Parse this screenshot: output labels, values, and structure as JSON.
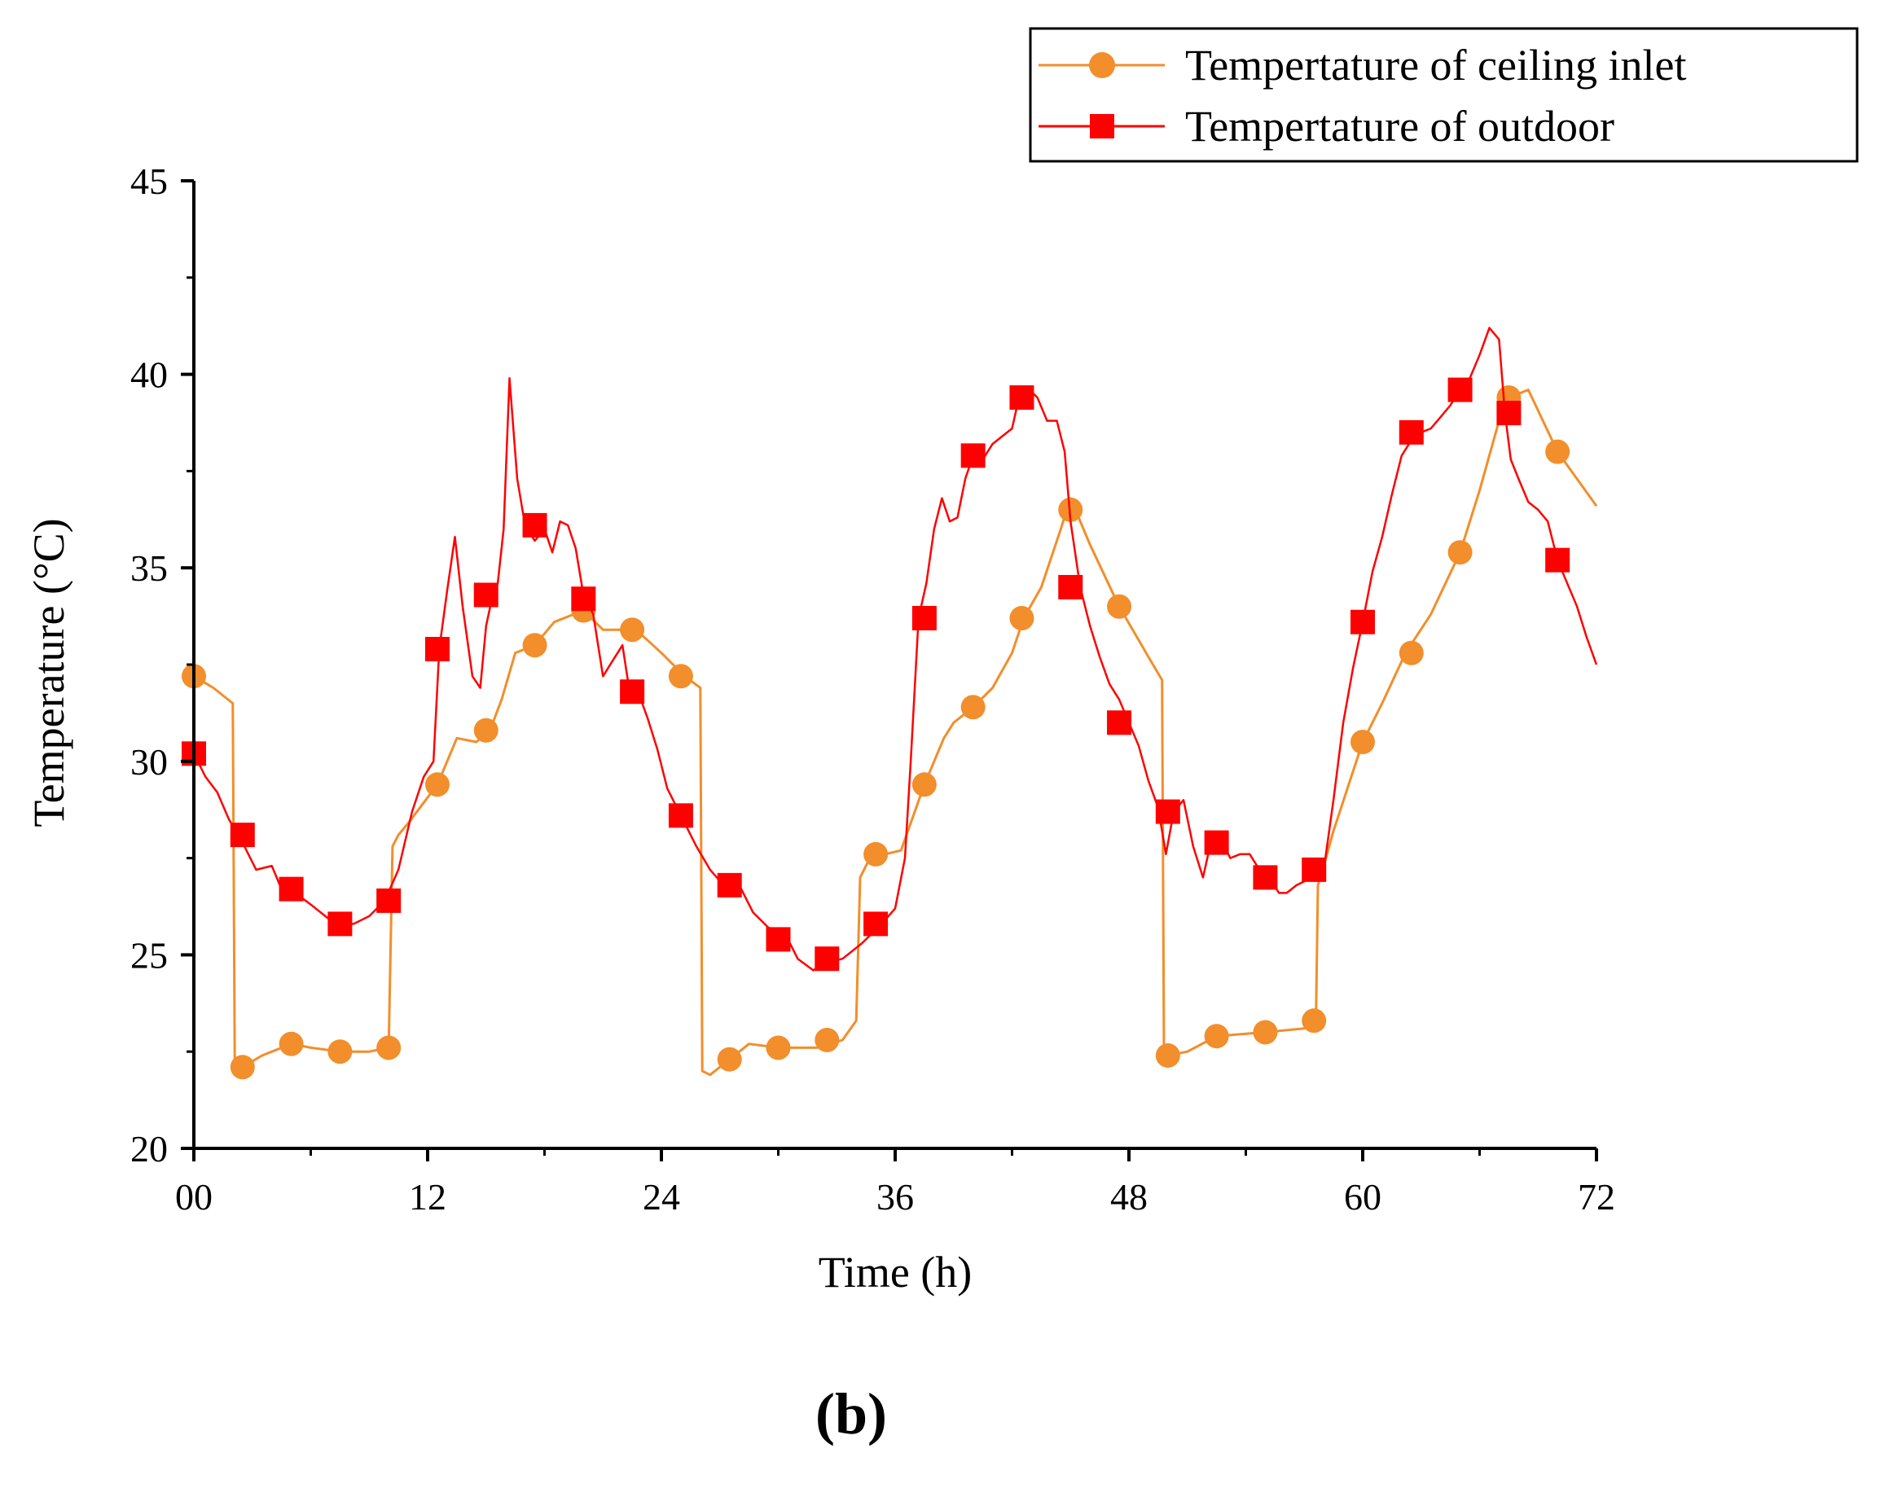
{
  "chart_data": {
    "type": "line",
    "title": "",
    "panel_label": "(b)",
    "xlabel": "Time (h)",
    "ylabel": "Temperature (°C)",
    "xlim": [
      0,
      72
    ],
    "ylim": [
      20,
      45
    ],
    "x_ticks": [
      0,
      12,
      24,
      36,
      48,
      60,
      72
    ],
    "x_tick_labels": [
      "00",
      "12",
      "24",
      "36",
      "48",
      "60",
      "72"
    ],
    "y_ticks": [
      20,
      25,
      30,
      35,
      40,
      45
    ],
    "y_tick_labels": [
      "20",
      "25",
      "30",
      "35",
      "40",
      "45"
    ],
    "grid": false,
    "legend_position": "top-right",
    "series": [
      {
        "name": "Tempertature of ceiling inlet",
        "color": "#f28e2b",
        "marker": "circle",
        "x": [
          0,
          1.0,
          2.0,
          2.1,
          2.5,
          3.5,
          5,
          6,
          7.5,
          9,
          10.0,
          10.2,
          10.5,
          11,
          12.5,
          13.5,
          14.5,
          15.2,
          15.8,
          16.5,
          17.5,
          18.5,
          20,
          21,
          22.7,
          24,
          25.2,
          26.0,
          26.1,
          26.5,
          27.5,
          28.5,
          30.0,
          32,
          33.3,
          34.0,
          34.2,
          34.7,
          35.5,
          36.3,
          37.5,
          38.5,
          39.0,
          40.0,
          41.0,
          42.0,
          42.6,
          43.5,
          44.5,
          45.0,
          46.0,
          47.5,
          49.0,
          49.7,
          49.8,
          50.0,
          51.0,
          52.5,
          55.0,
          57.0,
          57.6,
          57.7,
          58,
          58.5,
          60.0,
          61.0,
          62.2,
          63.5,
          65.0,
          66.0,
          67.0,
          67.5,
          68.5,
          70.0,
          72
        ],
        "y": [
          32.2,
          31.9,
          31.5,
          22.3,
          22.1,
          22.4,
          22.7,
          22.6,
          22.5,
          22.5,
          22.6,
          27.8,
          28.1,
          28.4,
          29.4,
          30.6,
          30.5,
          30.8,
          31.6,
          32.8,
          33.0,
          33.6,
          33.9,
          33.4,
          33.4,
          32.8,
          32.2,
          31.9,
          22.0,
          21.9,
          22.3,
          22.7,
          22.6,
          22.6,
          22.8,
          23.3,
          27.0,
          27.5,
          27.6,
          27.7,
          29.4,
          30.6,
          31.0,
          31.4,
          31.9,
          32.8,
          33.7,
          34.5,
          36.0,
          36.8,
          35.6,
          34.0,
          32.7,
          32.1,
          22.5,
          22.4,
          22.5,
          22.9,
          23.0,
          23.1,
          23.3,
          26.8,
          27.3,
          28.2,
          30.5,
          31.5,
          32.8,
          33.8,
          35.4,
          37.0,
          38.8,
          39.4,
          39.6,
          38.0,
          36.6
        ],
        "markers_x": [
          0,
          2.5,
          5,
          7.5,
          10.0,
          12.5,
          15.0,
          17.5,
          20.0,
          22.5,
          25.0,
          27.5,
          30.0,
          32.5,
          35.0,
          37.5,
          40.0,
          42.5,
          45.0,
          47.5,
          50.0,
          52.5,
          55.0,
          57.5,
          60.0,
          62.5,
          65.0,
          67.5,
          70.0
        ],
        "markers_y": [
          32.2,
          22.1,
          22.7,
          22.5,
          22.6,
          29.4,
          30.8,
          33.0,
          33.9,
          33.4,
          32.2,
          22.3,
          22.6,
          22.8,
          27.6,
          29.4,
          31.4,
          33.7,
          36.5,
          34.0,
          22.4,
          22.9,
          23.0,
          23.3,
          30.5,
          32.8,
          35.4,
          39.4,
          38.0
        ]
      },
      {
        "name": "Tempertature of outdoor",
        "color": "#ff0000",
        "marker": "square",
        "x": [
          0,
          0.6,
          1.2,
          1.8,
          2.5,
          3.2,
          4.0,
          4.5,
          5.2,
          6.0,
          6.5,
          7.0,
          7.5,
          8.2,
          9.0,
          9.8,
          10.5,
          11.2,
          11.8,
          12.3,
          12.6,
          13.0,
          13.4,
          13.8,
          14.3,
          14.7,
          15.0,
          15.3,
          15.6,
          15.9,
          16.2,
          16.6,
          17.0,
          17.5,
          18.0,
          18.4,
          18.8,
          19.2,
          19.6,
          20.0,
          20.5,
          21.0,
          21.5,
          22.0,
          22.4,
          22.8,
          23.3,
          23.8,
          24.3,
          25.0,
          25.8,
          26.5,
          27.2,
          28.0,
          28.7,
          29.5,
          30.3,
          31.0,
          31.8,
          32.5,
          33.3,
          34.3,
          35.3,
          36.0,
          36.5,
          36.8,
          37.2,
          37.6,
          38.0,
          38.4,
          38.8,
          39.2,
          39.6,
          40.0,
          40.5,
          41.0,
          41.5,
          42.0,
          42.4,
          42.9,
          43.3,
          43.8,
          44.3,
          44.7,
          45.0,
          45.5,
          46.0,
          46.5,
          47.0,
          47.5,
          48.0,
          48.5,
          49.0,
          49.5,
          49.9,
          50.3,
          50.8,
          51.3,
          51.8,
          52.2,
          52.7,
          53.2,
          53.7,
          54.2,
          54.7,
          55.2,
          55.7,
          56.1,
          56.6,
          57.0,
          57.5,
          58.0,
          58.5,
          59.0,
          59.5,
          60.0,
          60.5,
          61.0,
          61.5,
          62.0,
          62.5,
          63.0,
          63.5,
          64.0,
          64.5,
          65.0,
          65.5,
          66.0,
          66.5,
          67.0,
          67.3,
          67.6,
          68.0,
          68.5,
          69.0,
          69.5,
          70.0,
          70.5,
          71.0,
          71.5,
          72.0
        ],
        "y": [
          30.2,
          29.6,
          29.2,
          28.5,
          27.9,
          27.2,
          27.3,
          26.7,
          26.6,
          26.3,
          26.1,
          25.9,
          25.8,
          25.8,
          26.0,
          26.4,
          27.2,
          28.7,
          29.6,
          30.0,
          32.9,
          34.4,
          35.8,
          34.0,
          32.2,
          31.9,
          33.5,
          34.2,
          34.6,
          36.0,
          39.9,
          37.3,
          36.1,
          35.7,
          36.0,
          35.4,
          36.2,
          36.1,
          35.5,
          34.3,
          33.8,
          32.2,
          32.6,
          33.0,
          31.7,
          31.8,
          31.1,
          30.3,
          29.3,
          28.6,
          27.8,
          27.2,
          26.8,
          26.8,
          26.1,
          25.7,
          25.6,
          24.9,
          24.6,
          24.8,
          24.9,
          25.3,
          25.8,
          26.2,
          27.5,
          30.0,
          33.7,
          34.6,
          36.0,
          36.8,
          36.2,
          36.3,
          37.3,
          37.9,
          37.8,
          38.2,
          38.4,
          38.6,
          39.5,
          39.6,
          39.4,
          38.8,
          38.8,
          38.0,
          36.2,
          34.5,
          33.5,
          32.7,
          32.0,
          31.6,
          31.0,
          30.4,
          29.5,
          28.8,
          27.6,
          28.7,
          29.0,
          27.8,
          27.0,
          27.9,
          28.0,
          27.5,
          27.6,
          27.6,
          27.2,
          27.0,
          26.6,
          26.6,
          26.8,
          26.9,
          27.2,
          27.2,
          29.0,
          31.0,
          32.4,
          33.6,
          34.9,
          35.8,
          36.9,
          37.9,
          38.3,
          38.5,
          38.6,
          38.9,
          39.2,
          39.6,
          39.9,
          40.5,
          41.2,
          40.9,
          39.0,
          37.8,
          37.3,
          36.7,
          36.5,
          36.2,
          35.2,
          34.6,
          34.0,
          33.2,
          32.5
        ],
        "markers_x": [
          0,
          2.5,
          5.0,
          7.5,
          10.0,
          12.5,
          15.0,
          17.5,
          20.0,
          22.5,
          25.0,
          27.5,
          30.0,
          32.5,
          35.0,
          37.5,
          40.0,
          42.5,
          45.0,
          47.5,
          50.0,
          52.5,
          55.0,
          57.5,
          60.0,
          62.5,
          65.0,
          67.5,
          70.0
        ],
        "markers_y": [
          30.2,
          28.1,
          26.7,
          25.8,
          26.4,
          32.9,
          34.3,
          36.1,
          34.2,
          31.8,
          28.6,
          26.8,
          25.4,
          24.9,
          25.8,
          33.7,
          37.9,
          39.4,
          34.5,
          31.0,
          28.7,
          27.9,
          27.0,
          27.2,
          33.6,
          38.5,
          39.6,
          39.0,
          35.2
        ]
      }
    ]
  }
}
